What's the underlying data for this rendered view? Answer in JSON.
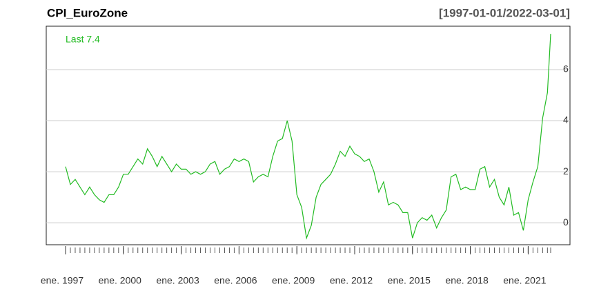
{
  "chart_data": {
    "type": "line",
    "title": "CPI_EuroZone",
    "subtitle": "[1997-01-01/2022-03-01]",
    "annotation": "Last 7.4",
    "x": [
      "1997-01",
      "1997-04",
      "1997-07",
      "1997-10",
      "1998-01",
      "1998-04",
      "1998-07",
      "1998-10",
      "1999-01",
      "1999-04",
      "1999-07",
      "1999-10",
      "2000-01",
      "2000-04",
      "2000-07",
      "2000-10",
      "2001-01",
      "2001-04",
      "2001-07",
      "2001-10",
      "2002-01",
      "2002-04",
      "2002-07",
      "2002-10",
      "2003-01",
      "2003-04",
      "2003-07",
      "2003-10",
      "2004-01",
      "2004-04",
      "2004-07",
      "2004-10",
      "2005-01",
      "2005-04",
      "2005-07",
      "2005-10",
      "2006-01",
      "2006-04",
      "2006-07",
      "2006-10",
      "2007-01",
      "2007-04",
      "2007-07",
      "2007-10",
      "2008-01",
      "2008-04",
      "2008-07",
      "2008-10",
      "2009-01",
      "2009-04",
      "2009-07",
      "2009-10",
      "2010-01",
      "2010-04",
      "2010-07",
      "2010-10",
      "2011-01",
      "2011-04",
      "2011-07",
      "2011-10",
      "2012-01",
      "2012-04",
      "2012-07",
      "2012-10",
      "2013-01",
      "2013-04",
      "2013-07",
      "2013-10",
      "2014-01",
      "2014-04",
      "2014-07",
      "2014-10",
      "2015-01",
      "2015-04",
      "2015-07",
      "2015-10",
      "2016-01",
      "2016-04",
      "2016-07",
      "2016-10",
      "2017-01",
      "2017-04",
      "2017-07",
      "2017-10",
      "2018-01",
      "2018-04",
      "2018-07",
      "2018-10",
      "2019-01",
      "2019-04",
      "2019-07",
      "2019-10",
      "2020-01",
      "2020-04",
      "2020-07",
      "2020-10",
      "2021-01",
      "2021-04",
      "2021-07",
      "2021-10",
      "2022-01",
      "2022-03"
    ],
    "series": [
      {
        "name": "CPI_EuroZone",
        "color": "#22bb22",
        "values": [
          2.2,
          1.5,
          1.7,
          1.4,
          1.1,
          1.4,
          1.1,
          0.9,
          0.8,
          1.1,
          1.1,
          1.4,
          1.9,
          1.9,
          2.2,
          2.5,
          2.3,
          2.9,
          2.6,
          2.2,
          2.6,
          2.3,
          2.0,
          2.3,
          2.1,
          2.1,
          1.9,
          2.0,
          1.9,
          2.0,
          2.3,
          2.4,
          1.9,
          2.1,
          2.2,
          2.5,
          2.4,
          2.5,
          2.4,
          1.6,
          1.8,
          1.9,
          1.8,
          2.6,
          3.2,
          3.3,
          4.0,
          3.2,
          1.1,
          0.6,
          -0.6,
          -0.1,
          1.0,
          1.5,
          1.7,
          1.9,
          2.3,
          2.8,
          2.6,
          3.0,
          2.7,
          2.6,
          2.4,
          2.5,
          2.0,
          1.2,
          1.6,
          0.7,
          0.8,
          0.7,
          0.4,
          0.4,
          -0.6,
          0.0,
          0.2,
          0.1,
          0.3,
          -0.2,
          0.2,
          0.5,
          1.8,
          1.9,
          1.3,
          1.4,
          1.3,
          1.3,
          2.1,
          2.2,
          1.4,
          1.7,
          1.0,
          0.7,
          1.4,
          0.3,
          0.4,
          -0.3,
          0.9,
          1.6,
          2.2,
          4.1,
          5.1,
          7.4
        ]
      }
    ],
    "xlim": [
      "1997-01",
      "2022-03"
    ],
    "xticks": [
      {
        "value": "1997-01",
        "label": "ene. 1997"
      },
      {
        "value": "2000-01",
        "label": "ene. 2000"
      },
      {
        "value": "2003-01",
        "label": "ene. 2003"
      },
      {
        "value": "2006-01",
        "label": "ene. 2006"
      },
      {
        "value": "2009-01",
        "label": "ene. 2009"
      },
      {
        "value": "2012-01",
        "label": "ene. 2012"
      },
      {
        "value": "2015-01",
        "label": "ene. 2015"
      },
      {
        "value": "2018-01",
        "label": "ene. 2018"
      },
      {
        "value": "2021-01",
        "label": "ene. 2021"
      }
    ],
    "ylim": [
      -0.86,
      7.7
    ],
    "yticks": [
      0,
      2,
      4,
      6
    ],
    "grid": true
  }
}
